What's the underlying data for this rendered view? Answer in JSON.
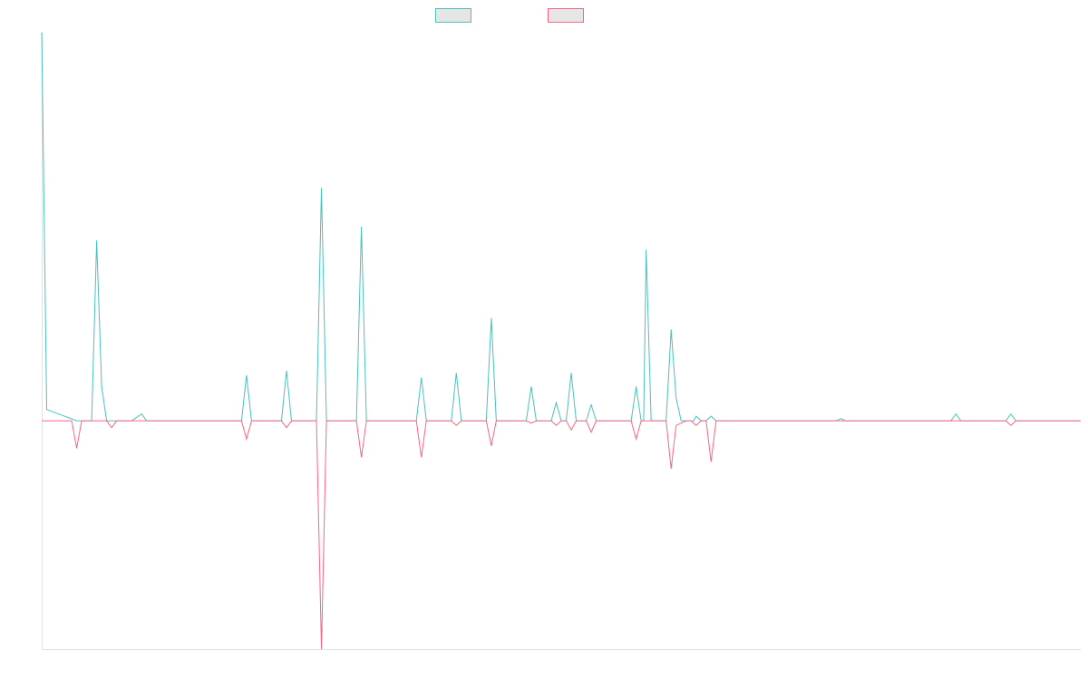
{
  "chart_data": {
    "type": "line",
    "title": "",
    "xlabel": "",
    "ylabel": "",
    "grid": false,
    "legend": "top-center",
    "x_count": 209,
    "ylim": [
      -100,
      170
    ],
    "series": [
      {
        "color": "#4bc0c0",
        "fill": "none",
        "values": [
          {
            "x": 0,
            "y": 170
          },
          {
            "x": 1,
            "y": 5
          },
          {
            "x": 7,
            "y": 0
          },
          {
            "x": 8,
            "y": 0
          },
          {
            "x": 9,
            "y": 0
          },
          {
            "x": 10,
            "y": 0
          },
          {
            "x": 11,
            "y": 79
          },
          {
            "x": 12,
            "y": 15
          },
          {
            "x": 13,
            "y": 0
          },
          {
            "x": 18,
            "y": 0
          },
          {
            "x": 20,
            "y": 3
          },
          {
            "x": 21,
            "y": 0
          },
          {
            "x": 32,
            "y": 0
          },
          {
            "x": 34,
            "y": 0
          },
          {
            "x": 40,
            "y": 0
          },
          {
            "x": 41,
            "y": 20
          },
          {
            "x": 42,
            "y": 0
          },
          {
            "x": 48,
            "y": 0
          },
          {
            "x": 49,
            "y": 22
          },
          {
            "x": 50,
            "y": 0
          },
          {
            "x": 55,
            "y": 0
          },
          {
            "x": 56,
            "y": 102
          },
          {
            "x": 57,
            "y": 0
          },
          {
            "x": 63,
            "y": 0
          },
          {
            "x": 64,
            "y": 85
          },
          {
            "x": 65,
            "y": 0
          },
          {
            "x": 75,
            "y": 0
          },
          {
            "x": 76,
            "y": 19
          },
          {
            "x": 77,
            "y": 0
          },
          {
            "x": 82,
            "y": 0
          },
          {
            "x": 83,
            "y": 21
          },
          {
            "x": 84,
            "y": 0
          },
          {
            "x": 89,
            "y": 0
          },
          {
            "x": 90,
            "y": 45
          },
          {
            "x": 91,
            "y": 0
          },
          {
            "x": 97,
            "y": 0
          },
          {
            "x": 98,
            "y": 15
          },
          {
            "x": 99,
            "y": 0
          },
          {
            "x": 102,
            "y": 0
          },
          {
            "x": 103,
            "y": 8
          },
          {
            "x": 104,
            "y": 0
          },
          {
            "x": 105,
            "y": 0
          },
          {
            "x": 106,
            "y": 21
          },
          {
            "x": 107,
            "y": 0
          },
          {
            "x": 109,
            "y": 0
          },
          {
            "x": 110,
            "y": 7
          },
          {
            "x": 111,
            "y": 0
          },
          {
            "x": 118,
            "y": 0
          },
          {
            "x": 119,
            "y": 15
          },
          {
            "x": 120,
            "y": 0
          },
          {
            "x": 120.5,
            "y": 0
          },
          {
            "x": 121,
            "y": 75
          },
          {
            "x": 122,
            "y": 0
          },
          {
            "x": 123,
            "y": 0
          },
          {
            "x": 124,
            "y": 0
          },
          {
            "x": 125,
            "y": 0
          },
          {
            "x": 126,
            "y": 40
          },
          {
            "x": 127,
            "y": 10
          },
          {
            "x": 128,
            "y": 0
          },
          {
            "x": 129,
            "y": 0
          },
          {
            "x": 130,
            "y": 0
          },
          {
            "x": 130.5,
            "y": 0
          },
          {
            "x": 131,
            "y": 2
          },
          {
            "x": 132,
            "y": 0
          },
          {
            "x": 133,
            "y": 0
          },
          {
            "x": 134,
            "y": 2
          },
          {
            "x": 135,
            "y": 0
          },
          {
            "x": 159,
            "y": 0
          },
          {
            "x": 160,
            "y": 1
          },
          {
            "x": 161,
            "y": 0
          },
          {
            "x": 182,
            "y": 0
          },
          {
            "x": 183,
            "y": 3
          },
          {
            "x": 184,
            "y": 0
          },
          {
            "x": 193,
            "y": 0
          },
          {
            "x": 194,
            "y": 3
          },
          {
            "x": 195,
            "y": 0
          },
          {
            "x": 208,
            "y": 0
          }
        ]
      },
      {
        "color": "#ff6384",
        "fill": "none",
        "values": [
          {
            "x": 0,
            "y": 0
          },
          {
            "x": 1,
            "y": 0
          },
          {
            "x": 6,
            "y": 0
          },
          {
            "x": 7,
            "y": -12
          },
          {
            "x": 8,
            "y": 0
          },
          {
            "x": 11,
            "y": 0
          },
          {
            "x": 13,
            "y": 0
          },
          {
            "x": 14,
            "y": -3
          },
          {
            "x": 15,
            "y": 0
          },
          {
            "x": 40,
            "y": 0
          },
          {
            "x": 41,
            "y": -8
          },
          {
            "x": 42,
            "y": 0
          },
          {
            "x": 48,
            "y": 0
          },
          {
            "x": 49,
            "y": -3
          },
          {
            "x": 50,
            "y": 0
          },
          {
            "x": 55,
            "y": 0
          },
          {
            "x": 56,
            "y": -100
          },
          {
            "x": 57,
            "y": 0
          },
          {
            "x": 63,
            "y": 0
          },
          {
            "x": 64,
            "y": -16
          },
          {
            "x": 65,
            "y": 0
          },
          {
            "x": 75,
            "y": 0
          },
          {
            "x": 76,
            "y": -16
          },
          {
            "x": 77,
            "y": 0
          },
          {
            "x": 82,
            "y": 0
          },
          {
            "x": 83,
            "y": -2
          },
          {
            "x": 84,
            "y": 0
          },
          {
            "x": 89,
            "y": 0
          },
          {
            "x": 90,
            "y": -11
          },
          {
            "x": 91,
            "y": 0
          },
          {
            "x": 97,
            "y": 0
          },
          {
            "x": 98,
            "y": -1
          },
          {
            "x": 99,
            "y": 0
          },
          {
            "x": 102,
            "y": 0
          },
          {
            "x": 103,
            "y": -2
          },
          {
            "x": 104,
            "y": 0
          },
          {
            "x": 105,
            "y": 0
          },
          {
            "x": 106,
            "y": -4
          },
          {
            "x": 107,
            "y": 0
          },
          {
            "x": 109,
            "y": 0
          },
          {
            "x": 110,
            "y": -5
          },
          {
            "x": 111,
            "y": 0
          },
          {
            "x": 118,
            "y": 0
          },
          {
            "x": 119,
            "y": -8
          },
          {
            "x": 120,
            "y": 0
          },
          {
            "x": 125,
            "y": 0
          },
          {
            "x": 126,
            "y": -21
          },
          {
            "x": 127,
            "y": -2
          },
          {
            "x": 128,
            "y": -1
          },
          {
            "x": 129,
            "y": 0
          },
          {
            "x": 130,
            "y": 0
          },
          {
            "x": 131,
            "y": -2
          },
          {
            "x": 132,
            "y": 0
          },
          {
            "x": 133,
            "y": 0
          },
          {
            "x": 134,
            "y": -18
          },
          {
            "x": 135,
            "y": 0
          },
          {
            "x": 193,
            "y": 0
          },
          {
            "x": 194,
            "y": -2
          },
          {
            "x": 195,
            "y": 0
          },
          {
            "x": 208,
            "y": 0
          }
        ]
      }
    ]
  }
}
